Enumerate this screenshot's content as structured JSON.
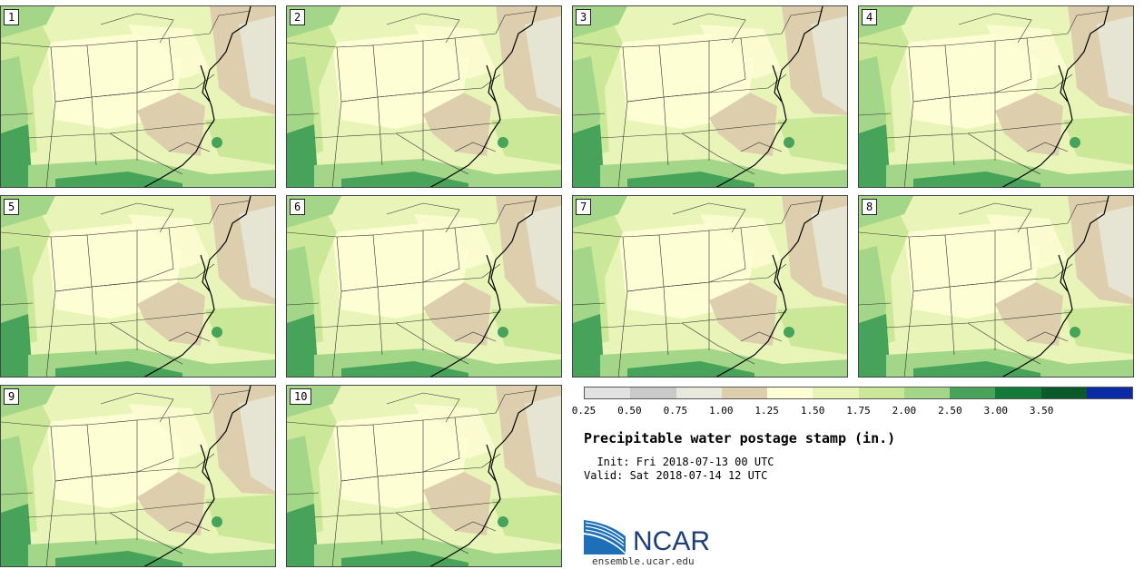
{
  "panels": [
    {
      "label": "1"
    },
    {
      "label": "2"
    },
    {
      "label": "3"
    },
    {
      "label": "4"
    },
    {
      "label": "5"
    },
    {
      "label": "6"
    },
    {
      "label": "7"
    },
    {
      "label": "8"
    },
    {
      "label": "9"
    },
    {
      "label": "10"
    }
  ],
  "colorbar": {
    "bins": [
      {
        "color": "#e1e1e1"
      },
      {
        "color": "#c9c9c9"
      },
      {
        "color": "#e8e8dc"
      },
      {
        "color": "#ddcfad"
      },
      {
        "color": "#fefed4"
      },
      {
        "color": "#e9f5b8"
      },
      {
        "color": "#cbe898"
      },
      {
        "color": "#a3d688"
      },
      {
        "color": "#47a35a"
      },
      {
        "color": "#137a38"
      },
      {
        "color": "#0b5a2b"
      },
      {
        "color": "#0a2aa6"
      }
    ],
    "tick_labels": [
      "0.25",
      "0.50",
      "0.75",
      "1.00",
      "1.25",
      "1.50",
      "1.75",
      "2.00",
      "2.50",
      "3.00",
      "3.50"
    ]
  },
  "title": "Precipitable water postage stamp (in.)",
  "init_line": "  Init: Fri 2018-07-13 00 UTC",
  "valid_line": "Valid: Sat 2018-07-14 12 UTC",
  "logo": {
    "text": "NCAR",
    "url": "ensemble.ucar.edu"
  }
}
